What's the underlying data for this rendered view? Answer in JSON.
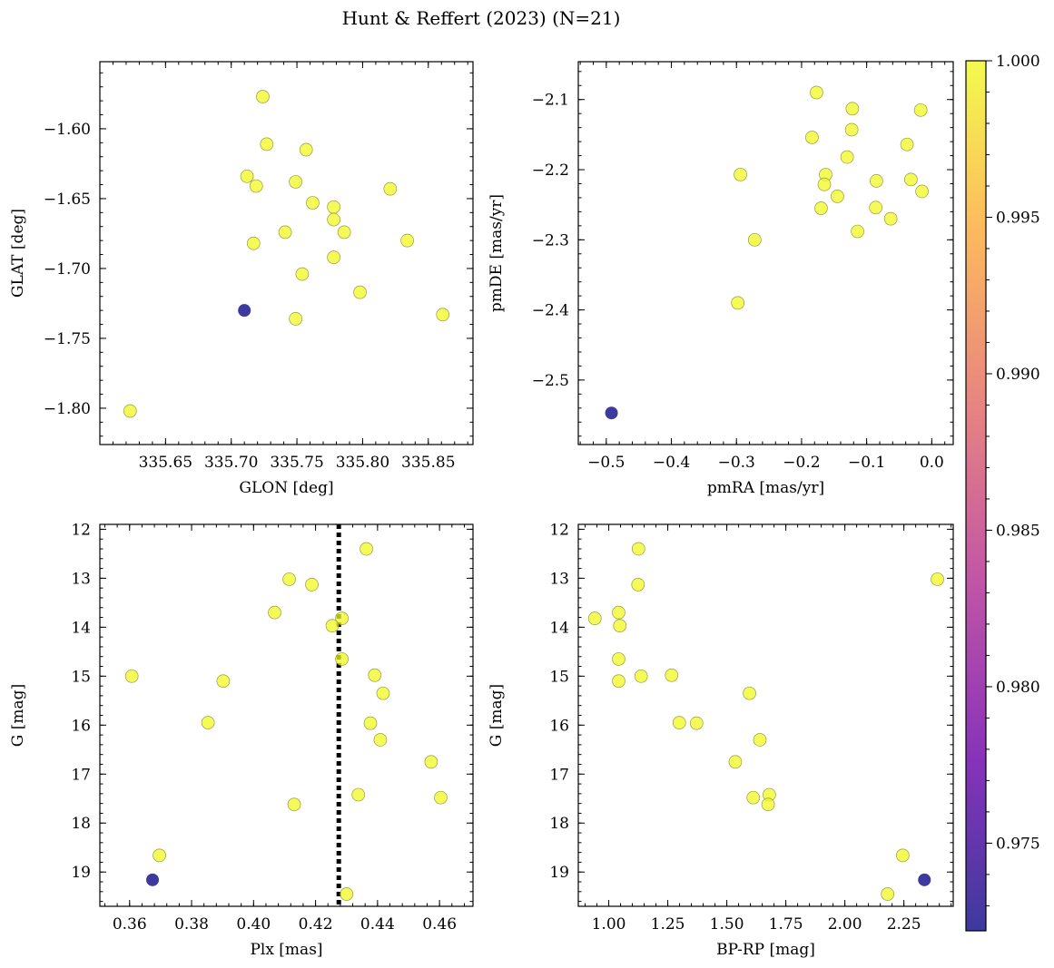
{
  "figure": {
    "title": "Hunt & Reffert (2023) (N=21)"
  },
  "colorbar": {
    "range": [
      0.9722,
      1.0
    ],
    "ticks": [
      0.975,
      0.98,
      0.985,
      0.99,
      0.995,
      1.0
    ],
    "tick_labels": [
      "0.975",
      "0.980",
      "0.985",
      "0.990",
      "0.995",
      "1.000"
    ],
    "colormap": [
      "#0d0887",
      "#6a00a8",
      "#b12a90",
      "#e16462",
      "#fca636",
      "#f0f921"
    ],
    "label": ""
  },
  "chart_data": [
    {
      "type": "scatter",
      "name": "panel-glon-glat",
      "xlabel": "GLON [deg]",
      "ylabel": "GLAT [deg]",
      "xlim": [
        335.6,
        335.884
      ],
      "ylim": [
        -1.826,
        -1.552
      ],
      "y_inverted": false,
      "xticks": [
        335.65,
        335.7,
        335.75,
        335.8,
        335.85
      ],
      "xtick_labels": [
        "335.65",
        "335.70",
        "335.75",
        "335.80",
        "335.85"
      ],
      "yticks": [
        -1.6,
        -1.65,
        -1.7,
        -1.75,
        -1.8
      ],
      "ytick_labels": [
        "−1.60",
        "−1.65",
        "−1.70",
        "−1.75",
        "−1.80"
      ],
      "points": [
        {
          "x": 335.724,
          "y": -1.577,
          "p": 1.0
        },
        {
          "x": 335.727,
          "y": -1.611,
          "p": 1.0
        },
        {
          "x": 335.757,
          "y": -1.615,
          "p": 1.0
        },
        {
          "x": 335.712,
          "y": -1.634,
          "p": 1.0
        },
        {
          "x": 335.719,
          "y": -1.641,
          "p": 1.0
        },
        {
          "x": 335.749,
          "y": -1.638,
          "p": 1.0
        },
        {
          "x": 335.821,
          "y": -1.643,
          "p": 1.0
        },
        {
          "x": 335.762,
          "y": -1.653,
          "p": 1.0
        },
        {
          "x": 335.778,
          "y": -1.656,
          "p": 1.0
        },
        {
          "x": 335.778,
          "y": -1.665,
          "p": 1.0
        },
        {
          "x": 335.741,
          "y": -1.674,
          "p": 1.0
        },
        {
          "x": 335.786,
          "y": -1.674,
          "p": 1.0
        },
        {
          "x": 335.717,
          "y": -1.682,
          "p": 1.0
        },
        {
          "x": 335.834,
          "y": -1.68,
          "p": 1.0
        },
        {
          "x": 335.778,
          "y": -1.692,
          "p": 1.0
        },
        {
          "x": 335.754,
          "y": -1.704,
          "p": 1.0
        },
        {
          "x": 335.798,
          "y": -1.717,
          "p": 1.0
        },
        {
          "x": 335.71,
          "y": -1.73,
          "p": 0.9722
        },
        {
          "x": 335.749,
          "y": -1.736,
          "p": 1.0
        },
        {
          "x": 335.861,
          "y": -1.733,
          "p": 1.0
        },
        {
          "x": 335.623,
          "y": -1.802,
          "p": 1.0
        }
      ]
    },
    {
      "type": "scatter",
      "name": "panel-pmra-pmde",
      "xlabel": "pmRA [mas/yr]",
      "ylabel": "pmDE [mas/yr]",
      "xlim": [
        -0.543,
        0.033
      ],
      "ylim": [
        -2.592,
        -2.046
      ],
      "y_inverted": false,
      "xticks": [
        -0.5,
        -0.4,
        -0.3,
        -0.2,
        -0.1,
        0.0
      ],
      "xtick_labels": [
        "−0.5",
        "−0.4",
        "−0.3",
        "−0.2",
        "−0.1",
        "0.0"
      ],
      "yticks": [
        -2.1,
        -2.2,
        -2.3,
        -2.4,
        -2.5
      ],
      "ytick_labels": [
        "−2.1",
        "−2.2",
        "−2.3",
        "−2.4",
        "−2.5"
      ],
      "points": [
        {
          "x": -0.177,
          "y": -2.09,
          "p": 1.0
        },
        {
          "x": -0.122,
          "y": -2.113,
          "p": 1.0
        },
        {
          "x": -0.017,
          "y": -2.115,
          "p": 1.0
        },
        {
          "x": -0.123,
          "y": -2.143,
          "p": 1.0
        },
        {
          "x": -0.184,
          "y": -2.154,
          "p": 1.0
        },
        {
          "x": -0.038,
          "y": -2.164,
          "p": 1.0
        },
        {
          "x": -0.13,
          "y": -2.182,
          "p": 1.0
        },
        {
          "x": -0.294,
          "y": -2.207,
          "p": 1.0
        },
        {
          "x": -0.163,
          "y": -2.207,
          "p": 1.0
        },
        {
          "x": -0.085,
          "y": -2.216,
          "p": 1.0
        },
        {
          "x": -0.032,
          "y": -2.214,
          "p": 1.0
        },
        {
          "x": -0.165,
          "y": -2.221,
          "p": 1.0
        },
        {
          "x": -0.015,
          "y": -2.231,
          "p": 1.0
        },
        {
          "x": -0.145,
          "y": -2.238,
          "p": 1.0
        },
        {
          "x": -0.17,
          "y": -2.255,
          "p": 1.0
        },
        {
          "x": -0.086,
          "y": -2.254,
          "p": 1.0
        },
        {
          "x": -0.063,
          "y": -2.27,
          "p": 1.0
        },
        {
          "x": -0.114,
          "y": -2.288,
          "p": 1.0
        },
        {
          "x": -0.272,
          "y": -2.3,
          "p": 1.0
        },
        {
          "x": -0.298,
          "y": -2.39,
          "p": 1.0
        },
        {
          "x": -0.492,
          "y": -2.547,
          "p": 0.9722
        }
      ]
    },
    {
      "type": "scatter",
      "name": "panel-plx-g",
      "xlabel": "Plx [mas]",
      "ylabel": "G [mag]",
      "xlim": [
        0.3504,
        0.4708
      ],
      "ylim": [
        19.7,
        11.9
      ],
      "y_inverted": true,
      "xticks": [
        0.36,
        0.38,
        0.4,
        0.42,
        0.44,
        0.46
      ],
      "xtick_labels": [
        "0.36",
        "0.38",
        "0.40",
        "0.42",
        "0.44",
        "0.46"
      ],
      "yticks": [
        12,
        13,
        14,
        15,
        16,
        17,
        18,
        19
      ],
      "ytick_labels": [
        "12",
        "13",
        "14",
        "15",
        "16",
        "17",
        "18",
        "19"
      ],
      "vline": {
        "x": 0.4275,
        "style": "dotted"
      },
      "points": [
        {
          "x": 0.4364,
          "y": 12.4,
          "p": 1.0
        },
        {
          "x": 0.4115,
          "y": 13.02,
          "p": 1.0
        },
        {
          "x": 0.4188,
          "y": 13.13,
          "p": 1.0
        },
        {
          "x": 0.4068,
          "y": 13.7,
          "p": 1.0
        },
        {
          "x": 0.4285,
          "y": 13.82,
          "p": 1.0
        },
        {
          "x": 0.4254,
          "y": 13.97,
          "p": 1.0
        },
        {
          "x": 0.4285,
          "y": 14.65,
          "p": 1.0
        },
        {
          "x": 0.3607,
          "y": 15.0,
          "p": 1.0
        },
        {
          "x": 0.4391,
          "y": 14.98,
          "p": 1.0
        },
        {
          "x": 0.3902,
          "y": 15.1,
          "p": 1.0
        },
        {
          "x": 0.4418,
          "y": 15.35,
          "p": 1.0
        },
        {
          "x": 0.3853,
          "y": 15.95,
          "p": 1.0
        },
        {
          "x": 0.4377,
          "y": 15.96,
          "p": 1.0
        },
        {
          "x": 0.4409,
          "y": 16.3,
          "p": 1.0
        },
        {
          "x": 0.4573,
          "y": 16.75,
          "p": 1.0
        },
        {
          "x": 0.4338,
          "y": 17.42,
          "p": 1.0
        },
        {
          "x": 0.4604,
          "y": 17.48,
          "p": 1.0
        },
        {
          "x": 0.4131,
          "y": 17.62,
          "p": 1.0
        },
        {
          "x": 0.3696,
          "y": 18.66,
          "p": 1.0
        },
        {
          "x": 0.3674,
          "y": 19.16,
          "p": 0.9722
        },
        {
          "x": 0.43,
          "y": 19.45,
          "p": 1.0
        }
      ]
    },
    {
      "type": "scatter",
      "name": "panel-bprp-g",
      "xlabel": "BP-RP [mag]",
      "ylabel": "G [mag]",
      "xlim": [
        0.871,
        2.459
      ],
      "ylim": [
        19.7,
        11.9
      ],
      "y_inverted": true,
      "xticks": [
        1.0,
        1.25,
        1.5,
        1.75,
        2.0,
        2.25
      ],
      "xtick_labels": [
        "1.00",
        "1.25",
        "1.50",
        "1.75",
        "2.00",
        "2.25"
      ],
      "yticks": [
        12,
        13,
        14,
        15,
        16,
        17,
        18,
        19
      ],
      "ytick_labels": [
        "12",
        "13",
        "14",
        "15",
        "16",
        "17",
        "18",
        "19"
      ],
      "points": [
        {
          "x": 1.126,
          "y": 12.4,
          "p": 1.0
        },
        {
          "x": 2.392,
          "y": 13.02,
          "p": 1.0
        },
        {
          "x": 1.124,
          "y": 13.13,
          "p": 1.0
        },
        {
          "x": 1.042,
          "y": 13.7,
          "p": 1.0
        },
        {
          "x": 0.941,
          "y": 13.82,
          "p": 1.0
        },
        {
          "x": 1.047,
          "y": 13.97,
          "p": 1.0
        },
        {
          "x": 1.042,
          "y": 14.65,
          "p": 1.0
        },
        {
          "x": 1.137,
          "y": 15.0,
          "p": 1.0
        },
        {
          "x": 1.266,
          "y": 14.98,
          "p": 1.0
        },
        {
          "x": 1.042,
          "y": 15.1,
          "p": 1.0
        },
        {
          "x": 1.596,
          "y": 15.35,
          "p": 1.0
        },
        {
          "x": 1.299,
          "y": 15.95,
          "p": 1.0
        },
        {
          "x": 1.372,
          "y": 15.96,
          "p": 1.0
        },
        {
          "x": 1.64,
          "y": 16.3,
          "p": 1.0
        },
        {
          "x": 1.536,
          "y": 16.75,
          "p": 1.0
        },
        {
          "x": 1.68,
          "y": 17.42,
          "p": 1.0
        },
        {
          "x": 1.612,
          "y": 17.48,
          "p": 1.0
        },
        {
          "x": 1.675,
          "y": 17.62,
          "p": 1.0
        },
        {
          "x": 2.245,
          "y": 18.66,
          "p": 1.0
        },
        {
          "x": 2.337,
          "y": 19.16,
          "p": 0.9722
        },
        {
          "x": 2.181,
          "y": 19.45,
          "p": 1.0
        }
      ]
    }
  ]
}
